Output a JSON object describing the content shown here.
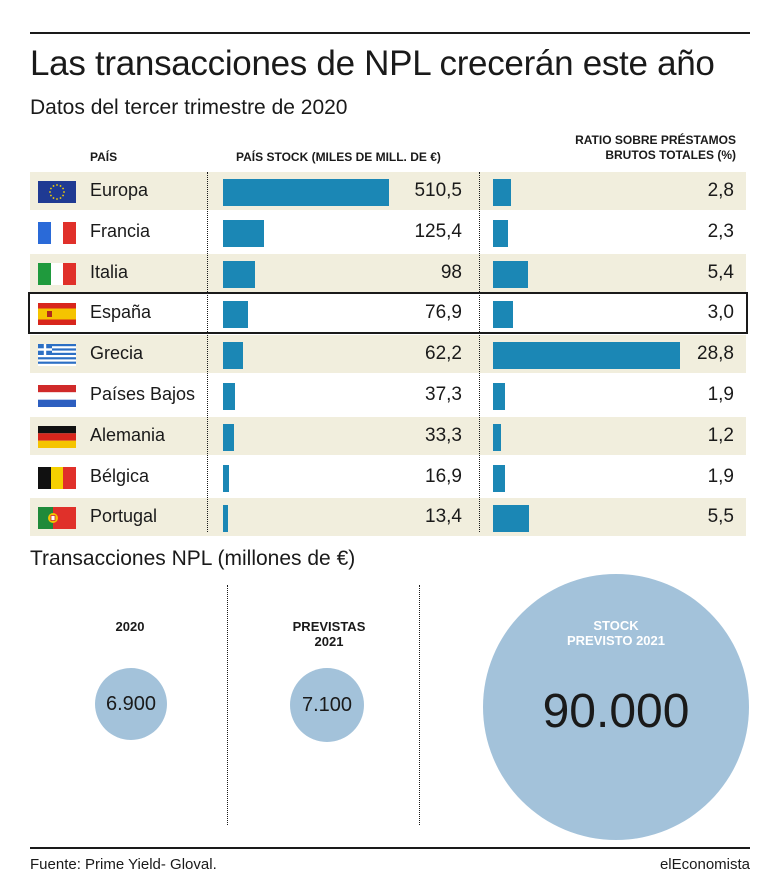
{
  "title": "Las transacciones de NPL crecerán este año",
  "subtitle": "Datos del tercer trimestre de 2020",
  "headers": {
    "country": "PAÍS",
    "stock": "PAÍS STOCK (MILES DE MILL. DE €)",
    "ratio_line1": "RATIO SOBRE PRÉSTAMOS",
    "ratio_line2": "BRUTOS TOTALES (%)"
  },
  "colors": {
    "bar": "#1b87b5",
    "circle": "#a3c2da",
    "shade": "#f1eedd"
  },
  "chart_data": [
    {
      "type": "bar",
      "title": "PAÍS STOCK (MILES DE MILL. DE €)",
      "orientation": "horizontal",
      "categories": [
        "Europa",
        "Francia",
        "Italia",
        "España",
        "Grecia",
        "Países Bajos",
        "Alemania",
        "Bélgica",
        "Portugal"
      ],
      "values": [
        510.5,
        125.4,
        98,
        76.9,
        62.2,
        37.3,
        33.3,
        16.9,
        13.4
      ],
      "labels": [
        "510,5",
        "125,4",
        "98",
        "76,9",
        "62,2",
        "37,3",
        "33,3",
        "16,9",
        "13,4"
      ],
      "xlim": [
        0,
        510.5
      ],
      "highlight": "España"
    },
    {
      "type": "bar",
      "title": "RATIO SOBRE PRÉSTAMOS BRUTOS TOTALES (%)",
      "orientation": "horizontal",
      "categories": [
        "Europa",
        "Francia",
        "Italia",
        "España",
        "Grecia",
        "Países Bajos",
        "Alemania",
        "Bélgica",
        "Portugal"
      ],
      "values": [
        2.8,
        2.3,
        5.4,
        3.0,
        28.8,
        1.9,
        1.2,
        1.9,
        5.5
      ],
      "labels": [
        "2,8",
        "2,3",
        "5,4",
        "3,0",
        "28,8",
        "1,9",
        "1,2",
        "1,9",
        "5,5"
      ],
      "xlim": [
        0,
        28.8
      ],
      "highlight": "España"
    },
    {
      "type": "bubble",
      "title": "Transacciones NPL (millones de €)",
      "items": [
        {
          "label": "2020",
          "value": 6900,
          "display": "6.900"
        },
        {
          "label_line1": "PREVISTAS",
          "label_line2": "2021",
          "value": 7100,
          "display": "7.100"
        },
        {
          "label_line1": "STOCK",
          "label_line2": "PREVISTO 2021",
          "value": 90000,
          "display": "90.000"
        }
      ]
    }
  ],
  "flags": [
    "eu-flag-icon",
    "france-flag-icon",
    "italy-flag-icon",
    "spain-flag-icon",
    "greece-flag-icon",
    "netherlands-flag-icon",
    "germany-flag-icon",
    "belgium-flag-icon",
    "portugal-flag-icon"
  ],
  "section2_title": "Transacciones NPL (millones de €)",
  "footer": {
    "source": "Fuente: Prime Yield- Gloval.",
    "brand": "elEconomista"
  }
}
